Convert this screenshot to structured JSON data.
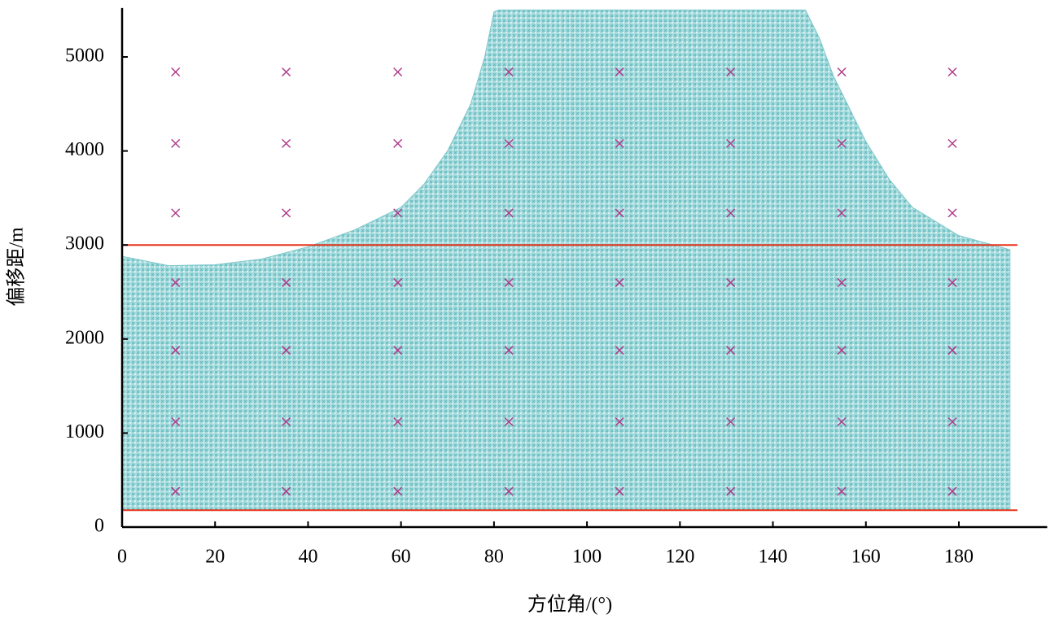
{
  "chart_data": {
    "type": "scatter",
    "xlabel": "方位角/(°)",
    "ylabel": "偏移距/m",
    "xlim": [
      0,
      199
    ],
    "ylim": [
      0,
      5520
    ],
    "xticks": [
      0,
      20,
      40,
      60,
      80,
      100,
      120,
      140,
      160,
      180
    ],
    "yticks": [
      0,
      1000,
      2000,
      3000,
      4000,
      5000
    ],
    "coverage": {
      "color": "#7ec8cc",
      "y0": 180,
      "x": [
        0,
        10,
        20,
        30,
        40,
        50,
        60,
        65,
        70,
        75,
        78,
        80,
        81,
        147,
        150,
        153,
        160,
        165,
        170,
        180,
        191
      ],
      "values": [
        2880,
        2780,
        2790,
        2850,
        2980,
        3160,
        3400,
        3650,
        4000,
        4500,
        5000,
        5480,
        5500,
        5500,
        5200,
        4800,
        4100,
        3700,
        3400,
        3100,
        2950
      ]
    },
    "points": {
      "color": "#b03a8a",
      "x": [
        11.5,
        35.3,
        59.3,
        83.2,
        107,
        130.9,
        154.8,
        178.6,
        11.5,
        35.3,
        59.3,
        83.2,
        107,
        130.9,
        154.8,
        178.6,
        11.5,
        35.3,
        59.3,
        83.2,
        107,
        130.9,
        154.8,
        178.6,
        11.5,
        35.3,
        59.3,
        83.2,
        107,
        130.9,
        154.8,
        178.6,
        11.5,
        35.3,
        59.3,
        83.2,
        107,
        130.9,
        154.8,
        178.6,
        11.5,
        35.3,
        59.3,
        83.2,
        107,
        130.9,
        154.8,
        178.6,
        11.5,
        35.3,
        59.3,
        83.2,
        107,
        130.9,
        154.8,
        178.6
      ],
      "values": [
        380,
        380,
        380,
        380,
        380,
        380,
        380,
        380,
        1120,
        1120,
        1120,
        1120,
        1120,
        1120,
        1120,
        1120,
        1880,
        1880,
        1880,
        1880,
        1880,
        1880,
        1880,
        1880,
        2600,
        2600,
        2600,
        2600,
        2600,
        2600,
        2600,
        2600,
        3340,
        3340,
        3340,
        3340,
        3340,
        3340,
        3340,
        3340,
        4080,
        4080,
        4080,
        4080,
        4080,
        4080,
        4080,
        4080,
        4840,
        4840,
        4840,
        4840,
        4840,
        4840,
        4840,
        4840
      ]
    },
    "reference_lines": [
      {
        "value": 3000,
        "x": [
          0,
          192.6
        ],
        "color": "#e8341c"
      },
      {
        "value": 180,
        "x": [
          0,
          192.6
        ],
        "color": "#e8341c"
      }
    ]
  }
}
